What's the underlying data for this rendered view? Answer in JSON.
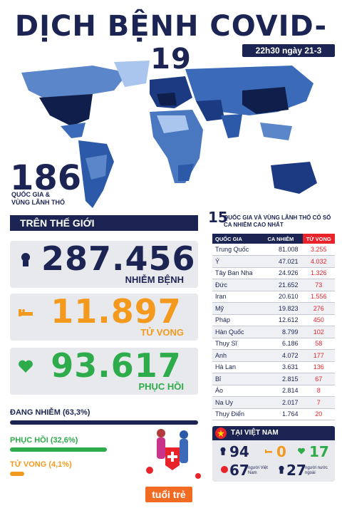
{
  "title": "DỊCH BỆNH COVID-19",
  "date": "22h30 ngày 21-3",
  "countries": {
    "number": "186",
    "label": "QUỐC GIA & VÙNG LÃNH THỔ"
  },
  "world": {
    "header": "TRÊN THẾ GIỚI",
    "infected": {
      "value": "287.456",
      "label": "NHIỄM BỆNH",
      "color": "#1b2452"
    },
    "deaths": {
      "value": "11.897",
      "label": "TỬ VONG",
      "color": "#f39a1e"
    },
    "recovered": {
      "value": "93.617",
      "label": "PHỤC HỒI",
      "color": "#2eab4a"
    }
  },
  "breakdown": {
    "active": {
      "label": "ĐANG NHIỄM (63,3%)",
      "percent": 63.3,
      "color": "#1b2452"
    },
    "recovered": {
      "label": "PHỤC HỒI (32,6%)",
      "percent": 32.6,
      "color": "#2eab4a"
    },
    "deaths": {
      "label": "TỬ VONG (4,1%)",
      "percent": 4.1,
      "color": "#f39a1e"
    }
  },
  "top": {
    "number": "15",
    "title": "QUỐC GIA VÀ VÙNG LÃNH THỔ CÓ SỐ CA NHIỄM CAO NHẤT",
    "headers": [
      "QUỐC GIA",
      "CA NHIỄM",
      "TỬ VONG"
    ],
    "rows": [
      [
        "Trung Quốc",
        "81.008",
        "3.255"
      ],
      [
        "Ý",
        "47.021",
        "4.032"
      ],
      [
        "Tây Ban Nha",
        "24.926",
        "1.326"
      ],
      [
        "Đức",
        "21.652",
        "73"
      ],
      [
        "Iran",
        "20.610",
        "1.556"
      ],
      [
        "Mỹ",
        "19.823",
        "276"
      ],
      [
        "Pháp",
        "12.612",
        "450"
      ],
      [
        "Hàn Quốc",
        "8.799",
        "102"
      ],
      [
        "Thụy Sĩ",
        "6.186",
        "58"
      ],
      [
        "Anh",
        "4.072",
        "177"
      ],
      [
        "Hà Lan",
        "3.631",
        "136"
      ],
      [
        "Bỉ",
        "2.815",
        "67"
      ],
      [
        "Áo",
        "2.814",
        "8"
      ],
      [
        "Na Uy",
        "2.017",
        "7"
      ],
      [
        "Thụy Điển",
        "1.764",
        "20"
      ]
    ]
  },
  "vietnam": {
    "header": "TẠI VIỆT NAM",
    "infected": "94",
    "deaths": "0",
    "recovered": "17",
    "vn_people": "67",
    "vn_people_label": "người Việt Nam",
    "foreigners": "27",
    "foreigners_label": "người nước ngoài"
  },
  "logo": "tuổi trẻ"
}
